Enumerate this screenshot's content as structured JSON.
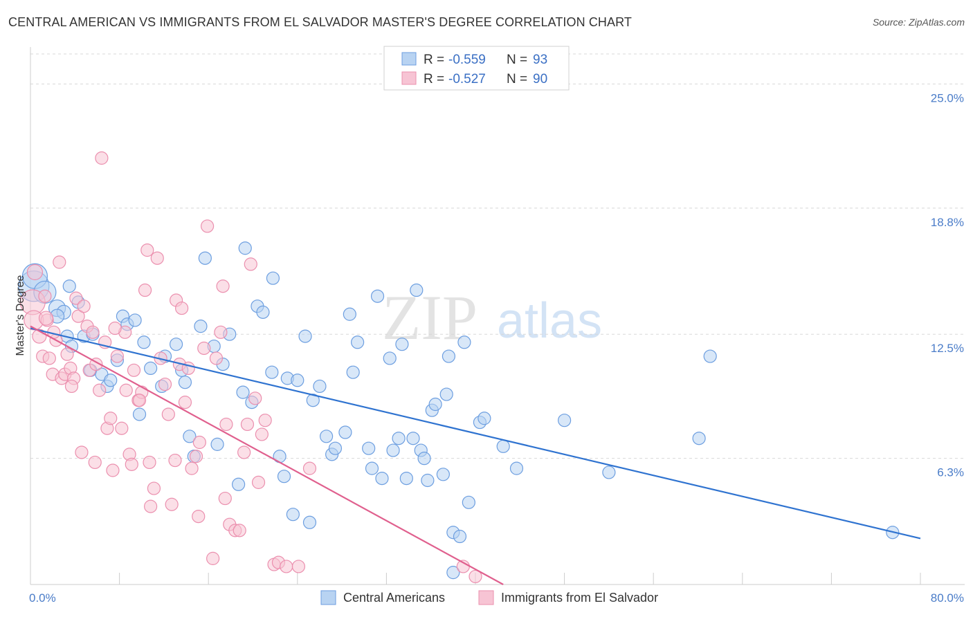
{
  "title": "CENTRAL AMERICAN VS IMMIGRANTS FROM EL SALVADOR MASTER'S DEGREE CORRELATION CHART",
  "source": "Source: ZipAtlas.com",
  "watermark": {
    "zip": "ZIP",
    "atlas": "atlas"
  },
  "colors": {
    "blue_fill": "#b8d3f2",
    "blue_stroke": "#6c9ee0",
    "blue_line": "#2f73d0",
    "pink_fill": "#f7c4d4",
    "pink_stroke": "#eb8fae",
    "pink_line": "#e0608e",
    "grid": "#d8d8d8",
    "axis_text": "#4a7cc8"
  },
  "stats": [
    {
      "r_label": "R = ",
      "r": "-0.559",
      "n_label": "N = ",
      "n": "93"
    },
    {
      "r_label": "R = ",
      "r": "-0.527",
      "n_label": "N = ",
      "n": "90"
    }
  ],
  "chart_data": {
    "type": "scatter",
    "title": "CENTRAL AMERICAN VS IMMIGRANTS FROM EL SALVADOR MASTER'S DEGREE CORRELATION CHART",
    "xlabel": "",
    "ylabel": "Master's Degree",
    "xlim": [
      0,
      80
    ],
    "ylim": [
      0,
      26.5
    ],
    "y_ticks": [
      6.3,
      12.5,
      18.8,
      25.0
    ],
    "y_tick_labels": [
      "6.3%",
      "12.5%",
      "18.8%",
      "25.0%"
    ],
    "x_tick_labels": [
      "0.0%",
      "80.0%"
    ],
    "grid": true,
    "legend": "bottom-center",
    "series": [
      {
        "name": "Central Americans",
        "color": "#6c9ee0",
        "trend": [
          [
            0,
            12.8
          ],
          [
            80,
            2.3
          ]
        ],
        "points": [
          [
            0.3,
            14.9,
            22
          ],
          [
            0.4,
            15.4,
            18
          ],
          [
            1.3,
            14.6,
            16
          ],
          [
            2.4,
            13.8,
            12
          ],
          [
            3.0,
            13.6,
            10
          ],
          [
            2.4,
            13.4,
            10
          ],
          [
            3.3,
            12.4,
            9
          ],
          [
            3.7,
            11.9,
            9
          ],
          [
            4.3,
            14.1,
            9
          ],
          [
            4.8,
            12.4,
            9
          ],
          [
            5.6,
            12.5,
            9
          ],
          [
            5.4,
            10.7,
            9
          ],
          [
            6.4,
            10.5,
            9
          ],
          [
            6.9,
            9.9,
            9
          ],
          [
            7.2,
            10.2,
            9
          ],
          [
            7.8,
            11.2,
            9
          ],
          [
            8.3,
            13.4,
            9
          ],
          [
            8.7,
            13.0,
            9
          ],
          [
            9.4,
            13.2,
            9
          ],
          [
            10.2,
            12.1,
            9
          ],
          [
            9.8,
            8.5,
            9
          ],
          [
            10.8,
            10.8,
            9
          ],
          [
            11.8,
            9.9,
            9
          ],
          [
            12.1,
            11.4,
            9
          ],
          [
            13.1,
            12.0,
            9
          ],
          [
            13.6,
            10.7,
            9
          ],
          [
            13.9,
            10.1,
            9
          ],
          [
            14.3,
            7.4,
            9
          ],
          [
            14.7,
            6.4,
            9
          ],
          [
            15.3,
            12.9,
            9
          ],
          [
            15.7,
            16.3,
            9
          ],
          [
            16.5,
            11.9,
            9
          ],
          [
            16.8,
            7.0,
            9
          ],
          [
            17.3,
            11.0,
            9
          ],
          [
            17.9,
            12.5,
            9
          ],
          [
            18.7,
            5.0,
            9
          ],
          [
            19.1,
            9.6,
            9
          ],
          [
            19.3,
            16.8,
            9
          ],
          [
            19.9,
            9.1,
            9
          ],
          [
            20.4,
            13.9,
            9
          ],
          [
            20.9,
            13.6,
            9
          ],
          [
            21.7,
            10.6,
            9
          ],
          [
            21.8,
            15.3,
            9
          ],
          [
            22.4,
            6.4,
            9
          ],
          [
            22.8,
            5.4,
            9
          ],
          [
            23.1,
            10.3,
            9
          ],
          [
            23.6,
            3.5,
            9
          ],
          [
            24.0,
            10.2,
            9
          ],
          [
            24.7,
            12.4,
            9
          ],
          [
            25.1,
            3.1,
            9
          ],
          [
            25.4,
            9.2,
            9
          ],
          [
            26.0,
            9.9,
            9
          ],
          [
            26.6,
            7.4,
            9
          ],
          [
            27.1,
            6.5,
            9
          ],
          [
            27.4,
            6.8,
            9
          ],
          [
            28.3,
            7.6,
            9
          ],
          [
            28.7,
            13.5,
            9
          ],
          [
            29.0,
            10.6,
            9
          ],
          [
            29.4,
            12.1,
            9
          ],
          [
            30.4,
            6.8,
            9
          ],
          [
            30.7,
            5.8,
            9
          ],
          [
            31.2,
            14.4,
            9
          ],
          [
            31.6,
            5.3,
            9
          ],
          [
            32.3,
            11.3,
            9
          ],
          [
            32.6,
            6.7,
            9
          ],
          [
            33.1,
            7.3,
            9
          ],
          [
            33.4,
            12.0,
            9
          ],
          [
            33.8,
            5.3,
            9
          ],
          [
            34.4,
            7.3,
            9
          ],
          [
            34.7,
            14.7,
            9
          ],
          [
            35.1,
            6.7,
            9
          ],
          [
            35.4,
            6.3,
            9
          ],
          [
            35.7,
            5.2,
            9
          ],
          [
            36.1,
            8.7,
            9
          ],
          [
            36.4,
            9.0,
            9
          ],
          [
            37.1,
            5.5,
            9
          ],
          [
            37.4,
            9.5,
            9
          ],
          [
            37.6,
            11.4,
            9
          ],
          [
            38.0,
            2.6,
            9
          ],
          [
            38.6,
            2.4,
            9
          ],
          [
            39.0,
            12.1,
            9
          ],
          [
            39.4,
            4.1,
            9
          ],
          [
            40.4,
            8.1,
            9
          ],
          [
            40.8,
            8.3,
            9
          ],
          [
            42.5,
            6.9,
            9
          ],
          [
            43.7,
            5.8,
            9
          ],
          [
            48.0,
            8.2,
            9
          ],
          [
            52.0,
            5.6,
            9
          ],
          [
            60.1,
            7.3,
            9
          ],
          [
            61.1,
            11.4,
            9
          ],
          [
            77.5,
            2.6,
            9
          ],
          [
            38.0,
            0.6,
            9
          ],
          [
            3.5,
            14.9,
            9
          ]
        ]
      },
      {
        "name": "Immigrants from El Salvador",
        "color": "#eb8fae",
        "trend": [
          [
            0,
            12.9
          ],
          [
            42.5,
            0
          ]
        ],
        "points": [
          [
            0.2,
            14.1,
            18
          ],
          [
            0.3,
            13.2,
            14
          ],
          [
            0.4,
            15.6,
            11
          ],
          [
            0.8,
            12.4,
            10
          ],
          [
            1.1,
            11.4,
            9
          ],
          [
            1.3,
            14.4,
            9
          ],
          [
            1.5,
            13.2,
            9
          ],
          [
            1.7,
            11.3,
            9
          ],
          [
            2.0,
            10.5,
            9
          ],
          [
            2.3,
            12.2,
            9
          ],
          [
            2.6,
            16.1,
            9
          ],
          [
            2.8,
            10.3,
            9
          ],
          [
            3.1,
            10.5,
            9
          ],
          [
            3.3,
            11.5,
            9
          ],
          [
            3.6,
            10.8,
            9
          ],
          [
            3.9,
            10.3,
            9
          ],
          [
            4.1,
            14.3,
            9
          ],
          [
            4.3,
            13.4,
            9
          ],
          [
            4.6,
            6.6,
            9
          ],
          [
            4.8,
            13.9,
            9
          ],
          [
            5.1,
            12.9,
            9
          ],
          [
            5.3,
            10.7,
            9
          ],
          [
            5.6,
            12.6,
            9
          ],
          [
            5.8,
            6.1,
            9
          ],
          [
            6.2,
            9.7,
            9
          ],
          [
            6.4,
            21.3,
            9
          ],
          [
            6.7,
            12.1,
            9
          ],
          [
            6.9,
            7.8,
            9
          ],
          [
            7.2,
            8.3,
            9
          ],
          [
            7.4,
            5.7,
            9
          ],
          [
            7.8,
            11.4,
            9
          ],
          [
            8.2,
            7.8,
            9
          ],
          [
            8.5,
            12.6,
            9
          ],
          [
            8.6,
            9.7,
            9
          ],
          [
            8.9,
            6.5,
            9
          ],
          [
            9.1,
            6.0,
            9
          ],
          [
            9.3,
            10.7,
            9
          ],
          [
            9.7,
            9.2,
            9
          ],
          [
            10.0,
            9.6,
            9
          ],
          [
            10.3,
            14.7,
            9
          ],
          [
            10.5,
            16.7,
            9
          ],
          [
            10.7,
            6.1,
            9
          ],
          [
            10.8,
            3.9,
            9
          ],
          [
            11.1,
            4.8,
            9
          ],
          [
            11.4,
            16.3,
            9
          ],
          [
            11.7,
            11.3,
            9
          ],
          [
            12.1,
            10.0,
            9
          ],
          [
            12.4,
            8.5,
            9
          ],
          [
            12.7,
            4.0,
            9
          ],
          [
            13.1,
            14.2,
            9
          ],
          [
            13.4,
            11.0,
            9
          ],
          [
            13.6,
            13.8,
            9
          ],
          [
            13.9,
            9.1,
            9
          ],
          [
            14.2,
            10.8,
            9
          ],
          [
            14.5,
            5.8,
            9
          ],
          [
            14.9,
            6.4,
            9
          ],
          [
            15.2,
            7.1,
            9
          ],
          [
            15.6,
            11.8,
            9
          ],
          [
            15.9,
            17.9,
            9
          ],
          [
            16.4,
            1.3,
            9
          ],
          [
            16.7,
            11.3,
            9
          ],
          [
            17.1,
            12.6,
            9
          ],
          [
            17.3,
            14.9,
            9
          ],
          [
            17.6,
            8.0,
            9
          ],
          [
            17.9,
            3.0,
            9
          ],
          [
            18.4,
            2.7,
            9
          ],
          [
            18.8,
            2.7,
            9
          ],
          [
            19.2,
            6.6,
            9
          ],
          [
            19.5,
            8.0,
            9
          ],
          [
            19.8,
            16.0,
            9
          ],
          [
            20.2,
            9.3,
            9
          ],
          [
            20.5,
            5.1,
            9
          ],
          [
            20.8,
            7.5,
            9
          ],
          [
            21.1,
            8.2,
            9
          ],
          [
            21.9,
            1.0,
            9
          ],
          [
            22.3,
            1.1,
            9
          ],
          [
            23.0,
            0.9,
            9
          ],
          [
            24.1,
            0.9,
            9
          ],
          [
            25.1,
            5.8,
            9
          ],
          [
            38.9,
            0.9,
            9
          ],
          [
            1.4,
            13.3,
            10
          ],
          [
            2.1,
            12.6,
            9
          ],
          [
            3.7,
            9.9,
            9
          ],
          [
            5.9,
            11.0,
            9
          ],
          [
            7.6,
            12.8,
            9
          ],
          [
            9.8,
            9.2,
            9
          ],
          [
            13.0,
            6.2,
            9
          ],
          [
            15.1,
            3.4,
            9
          ],
          [
            17.5,
            4.3,
            9
          ],
          [
            40.0,
            0.4,
            9
          ]
        ]
      }
    ]
  },
  "legend": {
    "blue_label": "Central Americans",
    "pink_label": "Immigrants from El Salvador"
  }
}
